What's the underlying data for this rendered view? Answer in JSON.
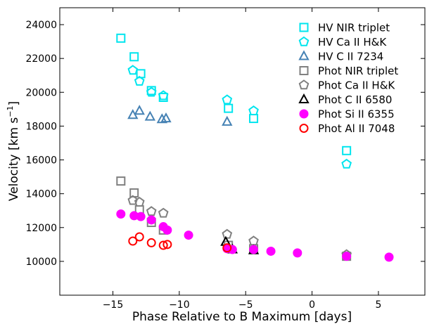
{
  "chart_data": {
    "type": "scatter",
    "xlabel": "Phase Relative to B Maximum [days]",
    "ylabel": "Velocity [km s",
    "ylabel_sup": "−1",
    "ylabel_close": "]",
    "xlim": [
      -19,
      8.5
    ],
    "ylim": [
      8000,
      25000
    ],
    "xticks": [
      -15,
      -10,
      -5,
      0,
      5
    ],
    "xtick_labels": [
      "−15",
      "−10",
      "−5",
      "0",
      "5"
    ],
    "yticks": [
      10000,
      12000,
      14000,
      16000,
      18000,
      20000,
      22000,
      24000
    ],
    "ytick_labels": [
      "10000",
      "12000",
      "14000",
      "16000",
      "18000",
      "20000",
      "22000",
      "24000"
    ],
    "grid": false,
    "legend_position": "top-right",
    "series": [
      {
        "name": "HV NIR triplet",
        "marker": "square",
        "color": "#00e5ee",
        "filled": false,
        "points": [
          [
            -14.4,
            23200
          ],
          [
            -13.4,
            22100
          ],
          [
            -12.9,
            21100
          ],
          [
            -12.1,
            20100
          ],
          [
            -11.2,
            19700
          ],
          [
            -6.3,
            19050
          ],
          [
            -4.4,
            18450
          ],
          [
            2.6,
            16550
          ]
        ]
      },
      {
        "name": "HV Ca II H&K",
        "marker": "pentagon",
        "color": "#00e5ee",
        "filled": false,
        "points": [
          [
            -13.5,
            21300
          ],
          [
            -13.0,
            20650
          ],
          [
            -12.1,
            20000
          ],
          [
            -11.2,
            19800
          ],
          [
            -6.4,
            19550
          ],
          [
            -4.4,
            18900
          ],
          [
            2.6,
            15750
          ]
        ]
      },
      {
        "name": "HV C II 7234",
        "marker": "triangle",
        "color": "#4682b4",
        "filled": false,
        "points": [
          [
            -13.5,
            18650
          ],
          [
            -13.0,
            18900
          ],
          [
            -12.2,
            18550
          ],
          [
            -11.3,
            18400
          ],
          [
            -11.0,
            18450
          ],
          [
            -6.4,
            18250
          ]
        ]
      },
      {
        "name": "Phot NIR triplet",
        "marker": "square",
        "color": "#808080",
        "filled": false,
        "points": [
          [
            -14.4,
            14750
          ],
          [
            -13.4,
            14050
          ],
          [
            -13.0,
            13050
          ],
          [
            -12.1,
            12300
          ],
          [
            -11.2,
            11850
          ],
          [
            -6.3,
            10950
          ],
          [
            -4.4,
            10750
          ],
          [
            2.6,
            10300
          ]
        ]
      },
      {
        "name": "Phot Ca II H&K",
        "marker": "pentagon",
        "color": "#808080",
        "filled": false,
        "points": [
          [
            -13.5,
            13600
          ],
          [
            -13.0,
            13500
          ],
          [
            -12.1,
            12950
          ],
          [
            -11.2,
            12850
          ],
          [
            -6.4,
            11600
          ],
          [
            -4.4,
            11200
          ],
          [
            2.6,
            10400
          ]
        ]
      },
      {
        "name": "Phot C II 6580",
        "marker": "triangle",
        "color": "#000000",
        "filled": false,
        "points": [
          [
            -6.5,
            11150
          ],
          [
            -6.0,
            10700
          ],
          [
            -4.4,
            10650
          ]
        ]
      },
      {
        "name": "Phot Si II 6355",
        "marker": "circle",
        "color": "#ff00ff",
        "filled": true,
        "points": [
          [
            -14.4,
            12800
          ],
          [
            -13.4,
            12700
          ],
          [
            -12.9,
            12650
          ],
          [
            -12.1,
            12450
          ],
          [
            -11.2,
            12050
          ],
          [
            -10.9,
            11850
          ],
          [
            -9.3,
            11550
          ],
          [
            -6.4,
            10750
          ],
          [
            -6.0,
            10700
          ],
          [
            -4.4,
            10700
          ],
          [
            -3.1,
            10600
          ],
          [
            -1.1,
            10500
          ],
          [
            2.6,
            10300
          ],
          [
            5.8,
            10250
          ]
        ]
      },
      {
        "name": "Phot Al II 7048",
        "marker": "circle",
        "color": "#ff0000",
        "filled": false,
        "points": [
          [
            -13.5,
            11200
          ],
          [
            -13.0,
            11450
          ],
          [
            -12.1,
            11100
          ],
          [
            -11.2,
            10950
          ],
          [
            -10.9,
            11000
          ],
          [
            -6.4,
            10800
          ]
        ]
      }
    ]
  }
}
